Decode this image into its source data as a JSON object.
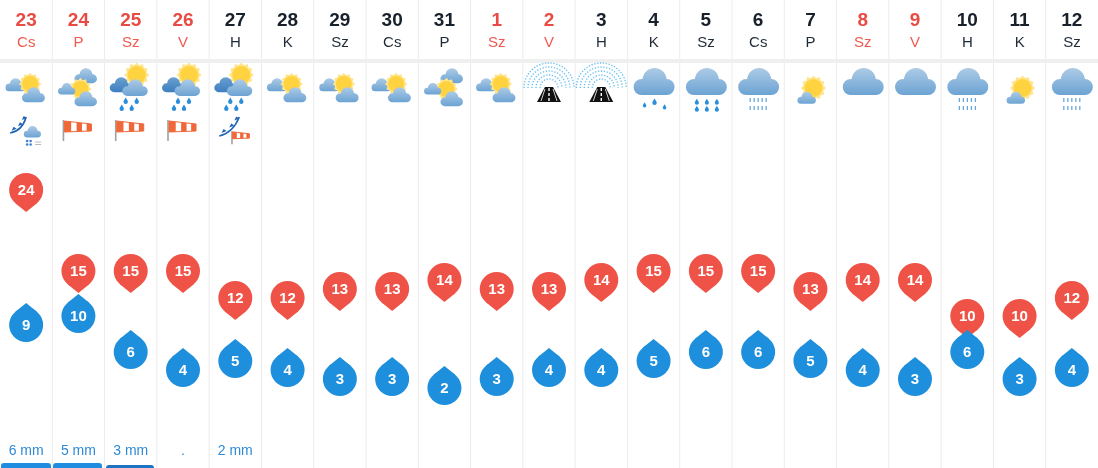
{
  "chart_data": {
    "type": "scatter",
    "categories": [
      "23 Cs",
      "24 P",
      "25 Sz",
      "26 V",
      "27 H",
      "28 K",
      "29 Sz",
      "30 Cs",
      "31 P",
      "1 Sz",
      "2 V",
      "3 H",
      "4 K",
      "5 Sz",
      "6 Cs",
      "7 P",
      "8 Sz",
      "9 V",
      "10 H",
      "11 K",
      "12 Sz"
    ],
    "series": [
      {
        "color": "#ef5246",
        "values": [
          24,
          15,
          15,
          15,
          12,
          12,
          13,
          13,
          14,
          13,
          13,
          14,
          15,
          15,
          15,
          13,
          14,
          14,
          10,
          10,
          12
        ]
      },
      {
        "color": "#1e8fdc",
        "values": [
          9,
          10,
          6,
          4,
          5,
          4,
          3,
          3,
          2,
          3,
          4,
          4,
          5,
          6,
          6,
          5,
          4,
          3,
          6,
          3,
          4
        ]
      }
    ],
    "annotations": [
      "6 mm",
      "5 mm",
      "3 mm",
      ".",
      "2 mm"
    ],
    "marker": "circle",
    "data_labels": true,
    "grid": "x"
  }
}
